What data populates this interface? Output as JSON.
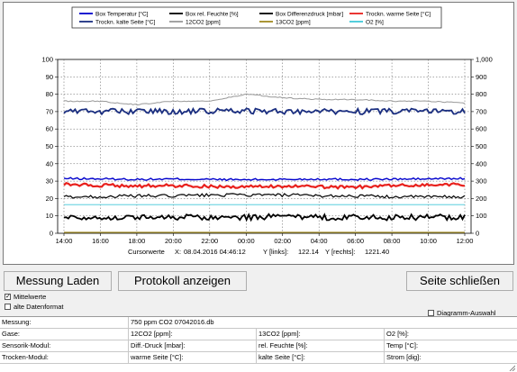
{
  "legend": [
    {
      "label": "Box Temperatur [°C]",
      "color": "#0000cc"
    },
    {
      "label": "Box rel. Feuchte [%]",
      "color": "#000000"
    },
    {
      "label": "Box Differenzdruck [mbar]",
      "color": "#000000"
    },
    {
      "label": "Trockn. warme Seite [°C]",
      "color": "#e8201c"
    },
    {
      "label": "Trockn. kalte Seite [°C]",
      "color": "#1a2e80"
    },
    {
      "label": "12CO2 [ppm]",
      "color": "#999999"
    },
    {
      "label": "13CO2 [ppm]",
      "color": "#a08a20"
    },
    {
      "label": "O2 [%]",
      "color": "#40c8d8"
    }
  ],
  "chart_data": {
    "type": "line",
    "x_ticks": [
      "14:00",
      "16:00",
      "18:00",
      "20:00",
      "22:00",
      "00:00",
      "02:00",
      "04:00",
      "06:00",
      "08:00",
      "10:00",
      "12:00"
    ],
    "y_left": {
      "ticks": [
        "0",
        "10",
        "20",
        "30",
        "40",
        "50",
        "60",
        "70",
        "80",
        "90",
        "100"
      ],
      "ylim": [
        0,
        100
      ]
    },
    "y_right": {
      "ticks": [
        "0",
        "100",
        "200",
        "300",
        "400",
        "500",
        "600",
        "700",
        "800",
        "900",
        "1,000"
      ],
      "ylim": [
        0,
        1000
      ]
    },
    "grid": true,
    "legend_position": "top",
    "series": [
      {
        "name": "Box Temperatur [°C]",
        "values": [
          31.5,
          31.3,
          31.0,
          31.2,
          31.0,
          30.8,
          31.0,
          31.2,
          31.0,
          31.1,
          31.3,
          31.5
        ]
      },
      {
        "name": "Box rel. Feuchte [%]",
        "values": [
          21,
          21,
          21.5,
          21.5,
          22,
          22,
          22,
          21.5,
          21.5,
          21,
          21,
          21
        ]
      },
      {
        "name": "Box Differenzdruck [mbar]",
        "values": [
          9.5,
          9.0,
          9.2,
          9.4,
          9.0,
          9.2,
          9.5,
          9.1,
          9.3,
          9.0,
          9.4,
          9.2
        ]
      },
      {
        "name": "Trockn. warme Seite [°C]",
        "values": [
          28.2,
          27.6,
          27.2,
          27.4,
          27.0,
          26.6,
          27.2,
          26.6,
          26.6,
          27.4,
          27.8,
          28.2
        ]
      },
      {
        "name": "Trockn. kalte Seite [°C]",
        "values": [
          70.5,
          70.0,
          70.2,
          70.0,
          70.2,
          70.4,
          70.0,
          70.2,
          70.0,
          70.1,
          70.2,
          70.3
        ]
      },
      {
        "name": "12CO2 [ppm]",
        "values": [
          76,
          76,
          74,
          76,
          76,
          80,
          78,
          77,
          77,
          76,
          76,
          75
        ]
      },
      {
        "name": "13CO2 [ppm]",
        "values": [
          0.5,
          0.5,
          0.5,
          0.5,
          0.5,
          0.5,
          0.5,
          0.5,
          0.5,
          0.5,
          0.5,
          0.5
        ]
      },
      {
        "name": "O2 [%]",
        "values": [
          16.5,
          16.5,
          16.5,
          16.5,
          16.5,
          16.5,
          16.5,
          16.5,
          16.5,
          16.5,
          16.5,
          16.5
        ]
      }
    ]
  },
  "cursor": {
    "label": "Cursorwerte",
    "x_label": "X:",
    "x_value": "08.04.2016 04:46:12",
    "y_left_label": "Y [links]:",
    "y_left_value": "122.14",
    "y_right_label": "Y [rechts]:",
    "y_right_value": "1221.40"
  },
  "buttons": {
    "load": "Messung Laden",
    "protocol": "Protokoll anzeigen",
    "close": "Seite schließen"
  },
  "checkboxes": {
    "averages": "Mittelwerte",
    "averages_checked": "✓",
    "old_format": "alte Datenformat",
    "diagram": "Diagramm-Auswahl"
  },
  "table": {
    "measurement": {
      "label": "Messung:",
      "value": "750 ppm CO2 07042016.db"
    },
    "gases": {
      "label": "Gase:",
      "c1": "12CO2 [ppm]:",
      "c2": "13CO2 [ppm]:",
      "c3": "O2 [%]:"
    },
    "sensor": {
      "label": "Sensorik-Modul:",
      "c1": "Diff.-Druck [mbar]:",
      "c2": "rel. Feuchte [%]:",
      "c3": "Temp [°C]:"
    },
    "dryer": {
      "label": "Trocken-Modul:",
      "c1": "warme Seite [°C]:",
      "c2": "kalte Seite [°C]:",
      "c3": "Strom [dig]:"
    }
  }
}
